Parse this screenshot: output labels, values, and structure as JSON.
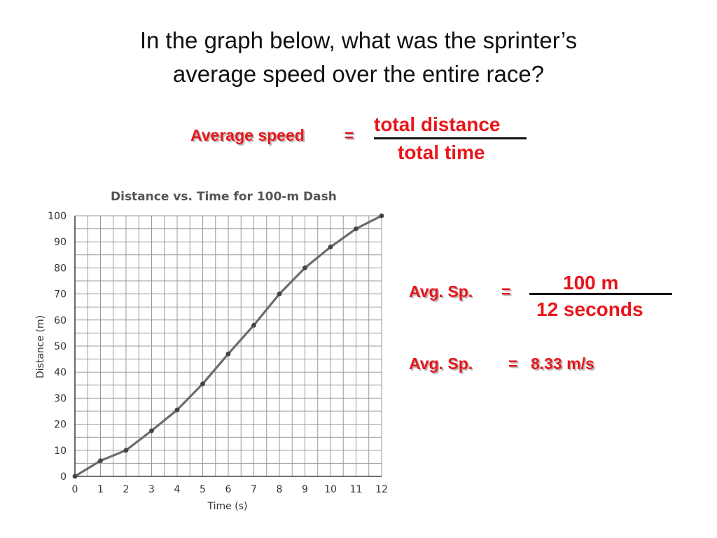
{
  "question": {
    "line1": "In the graph below, what was the sprinter’s",
    "line2": "average speed over the entire race?"
  },
  "formula": {
    "label": "Average speed",
    "equals": "=",
    "numerator": "total distance",
    "denominator": "total time"
  },
  "calc1": {
    "label": "Avg. Sp.",
    "equals": "=",
    "numerator": "100 m",
    "denominator": "12 seconds"
  },
  "calc2": {
    "label": "Avg. Sp.",
    "equals": "=",
    "result": "8.33 m/s"
  },
  "colors": {
    "accent": "#e8161b",
    "text": "#111111",
    "line": "#6b6b6b"
  },
  "chart_data": {
    "type": "line",
    "title": "Distance vs. Time for 100-m Dash",
    "xlabel": "Time (s)",
    "ylabel": "Distance (m)",
    "xlim": [
      0,
      12
    ],
    "ylim": [
      0,
      100
    ],
    "xticks": [
      0,
      1,
      2,
      3,
      4,
      5,
      6,
      7,
      8,
      9,
      10,
      11,
      12
    ],
    "yticks": [
      0,
      10,
      20,
      30,
      40,
      50,
      60,
      70,
      80,
      90,
      100
    ],
    "grid": true,
    "series": [
      {
        "x": [
          0,
          1,
          2,
          3,
          4,
          5,
          6,
          7,
          8,
          9,
          10,
          11,
          12
        ],
        "y": [
          0,
          6,
          10,
          17.5,
          25.5,
          35.5,
          47,
          58,
          70,
          80,
          88,
          95,
          100
        ]
      }
    ]
  }
}
